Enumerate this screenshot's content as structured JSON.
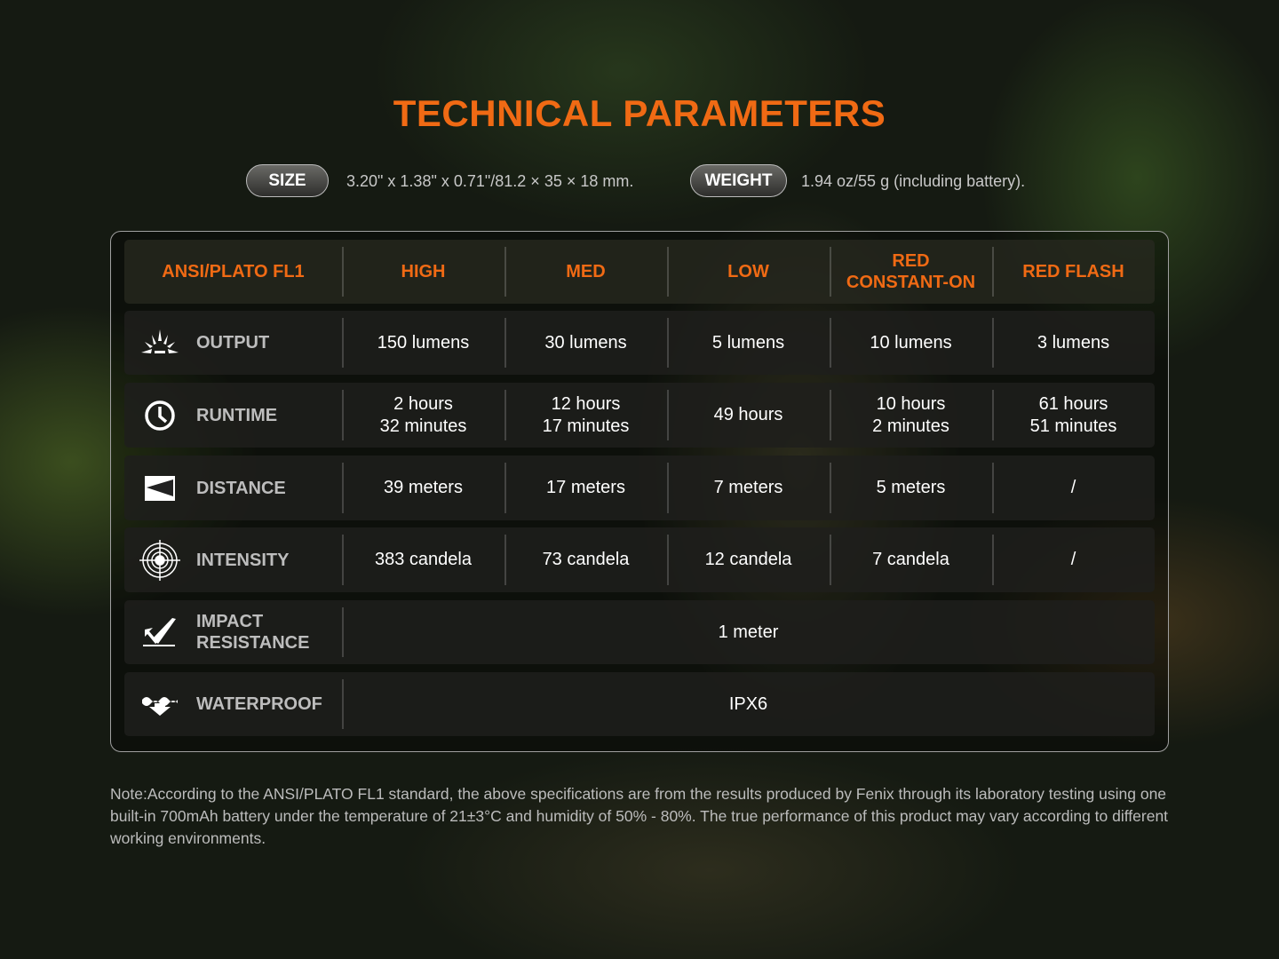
{
  "title": "TECHNICAL PARAMETERS",
  "size": {
    "label": "SIZE",
    "value": "3.20\" x 1.38\" x 0.71\"/81.2 × 35 × 18 mm."
  },
  "weight": {
    "label": "WEIGHT",
    "value": "1.94 oz/55 g (including battery)."
  },
  "table": {
    "headers": [
      "ANSI/PLATO FL1",
      "HIGH",
      "MED",
      "LOW",
      "RED\nCONSTANT-ON",
      "RED FLASH"
    ],
    "rows": [
      {
        "label": "OUTPUT",
        "icon": "sun-rays-icon",
        "values": [
          "150 lumens",
          "30 lumens",
          "5 lumens",
          "10 lumens",
          "3 lumens"
        ]
      },
      {
        "label": "RUNTIME",
        "icon": "clock-icon",
        "values": [
          "2 hours\n32 minutes",
          "12 hours\n17 minutes",
          "49 hours",
          "10 hours\n2 minutes",
          "61 hours\n51 minutes"
        ]
      },
      {
        "label": "DISTANCE",
        "icon": "distance-icon",
        "values": [
          "39 meters",
          "17 meters",
          "7 meters",
          "5 meters",
          "/"
        ]
      },
      {
        "label": "INTENSITY",
        "icon": "target-icon",
        "values": [
          "383 candela",
          "73 candela",
          "12 candela",
          "7 candela",
          "/"
        ]
      },
      {
        "label": "IMPACT\nRESISTANCE",
        "icon": "impact-icon",
        "value": "1 meter"
      },
      {
        "label": "WATERPROOF",
        "icon": "waterproof-icon",
        "value": "IPX6"
      }
    ]
  },
  "note": "Note:According to the ANSI/PLATO FL1 standard, the above specifications are from the results produced by Fenix through its laboratory testing using one built-in 700mAh battery under the temperature of 21±3°C and humidity of 50% - 80%. The true performance of this product may vary according to different working environments.",
  "colors": {
    "accent": "#f06a14"
  }
}
